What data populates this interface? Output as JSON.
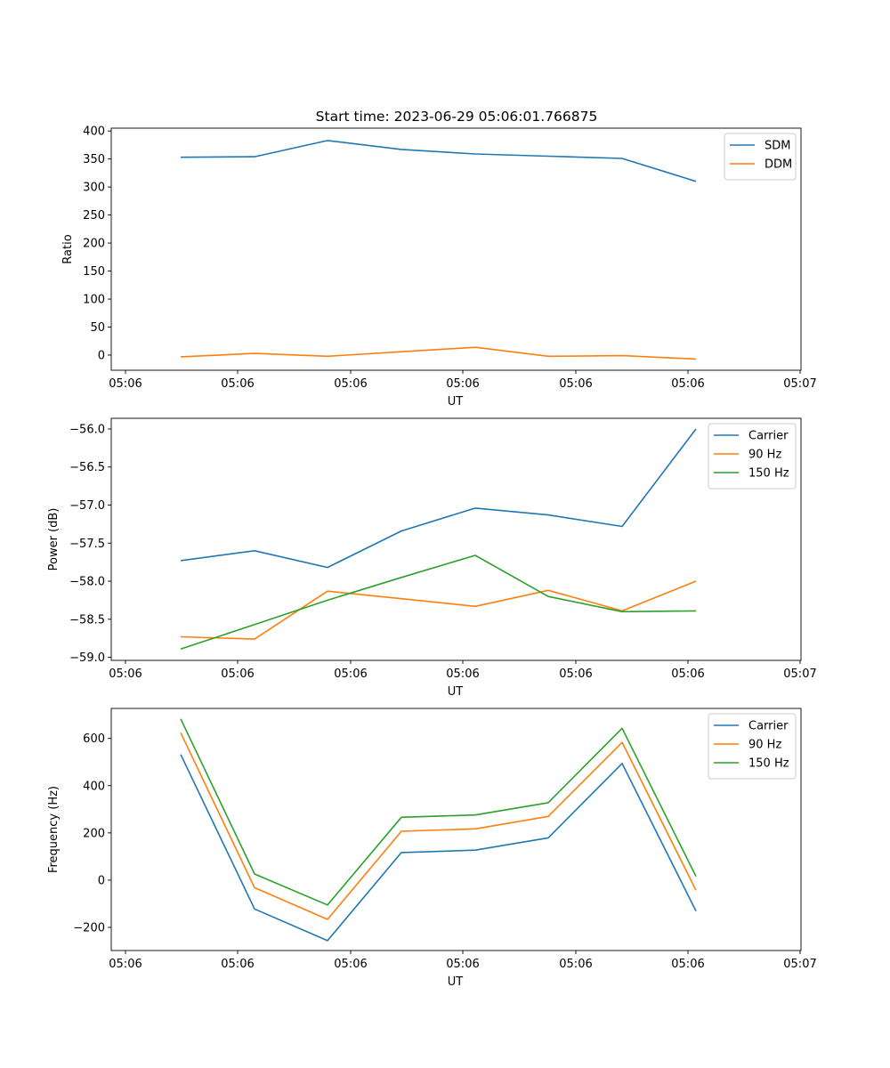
{
  "figure": {
    "title": "Start time: 2023-06-29 05:06:01.766875"
  },
  "chart_data": [
    {
      "type": "line",
      "xlabel": "UT",
      "ylabel": "Ratio",
      "x_tick_labels": [
        "05:06",
        "05:06",
        "05:06",
        "05:06",
        "05:06",
        "05:06",
        "05:07"
      ],
      "y_ticks": [
        0,
        50,
        100,
        150,
        200,
        250,
        300,
        350,
        400
      ],
      "y_tick_labels": [
        "0",
        "50",
        "100",
        "150",
        "200",
        "250",
        "300",
        "350",
        "400"
      ],
      "ylim": [
        -27,
        405
      ],
      "legend_position": "top-right",
      "grid": false,
      "series": [
        {
          "name": "SDM",
          "color": "#1f77b4",
          "values": [
            353,
            354,
            383,
            367,
            359,
            355,
            351,
            310
          ]
        },
        {
          "name": "DDM",
          "color": "#ff7f0e",
          "values": [
            -3,
            3,
            -2,
            6,
            14,
            -2,
            -1,
            -7
          ]
        }
      ]
    },
    {
      "type": "line",
      "xlabel": "UT",
      "ylabel": "Power (dB)",
      "x_tick_labels": [
        "05:06",
        "05:06",
        "05:06",
        "05:06",
        "05:06",
        "05:06",
        "05:07"
      ],
      "y_ticks": [
        -59.0,
        -58.5,
        -58.0,
        -57.5,
        -57.0,
        -56.5,
        -56.0
      ],
      "y_tick_labels": [
        "−59.0",
        "−58.5",
        "−58.0",
        "−57.5",
        "−57.0",
        "−56.5",
        "−56.0"
      ],
      "ylim": [
        -59.04,
        -55.86
      ],
      "legend_position": "top-right",
      "grid": false,
      "series": [
        {
          "name": "Carrier",
          "color": "#1f77b4",
          "values": [
            -57.73,
            -57.6,
            -57.82,
            -57.34,
            -57.04,
            -57.13,
            -57.28,
            -56.0
          ]
        },
        {
          "name": "90 Hz",
          "color": "#ff7f0e",
          "values": [
            -58.73,
            -58.76,
            -58.13,
            -58.23,
            -58.33,
            -58.12,
            -58.39,
            -58.0
          ]
        },
        {
          "name": "150 Hz",
          "color": "#2ca02c",
          "values": [
            -58.89,
            -58.57,
            -58.25,
            -57.95,
            -57.66,
            -58.2,
            -58.4,
            -58.39
          ]
        }
      ]
    },
    {
      "type": "line",
      "xlabel": "UT",
      "ylabel": "Frequency (Hz)",
      "x_tick_labels": [
        "05:06",
        "05:06",
        "05:06",
        "05:06",
        "05:06",
        "05:06",
        "05:07"
      ],
      "y_ticks": [
        -200,
        0,
        200,
        400,
        600
      ],
      "y_tick_labels": [
        "−200",
        "0",
        "200",
        "400",
        "600"
      ],
      "ylim": [
        -298,
        727
      ],
      "legend_position": "top-right",
      "grid": false,
      "series": [
        {
          "name": "Carrier",
          "color": "#1f77b4",
          "values": [
            532,
            -122,
            -256,
            117,
            127,
            179,
            494,
            -131
          ]
        },
        {
          "name": "90 Hz",
          "color": "#ff7f0e",
          "values": [
            624,
            -32,
            -166,
            207,
            217,
            270,
            583,
            -43
          ]
        },
        {
          "name": "150 Hz",
          "color": "#2ca02c",
          "values": [
            683,
            26,
            -105,
            266,
            276,
            328,
            643,
            16
          ]
        }
      ]
    }
  ]
}
